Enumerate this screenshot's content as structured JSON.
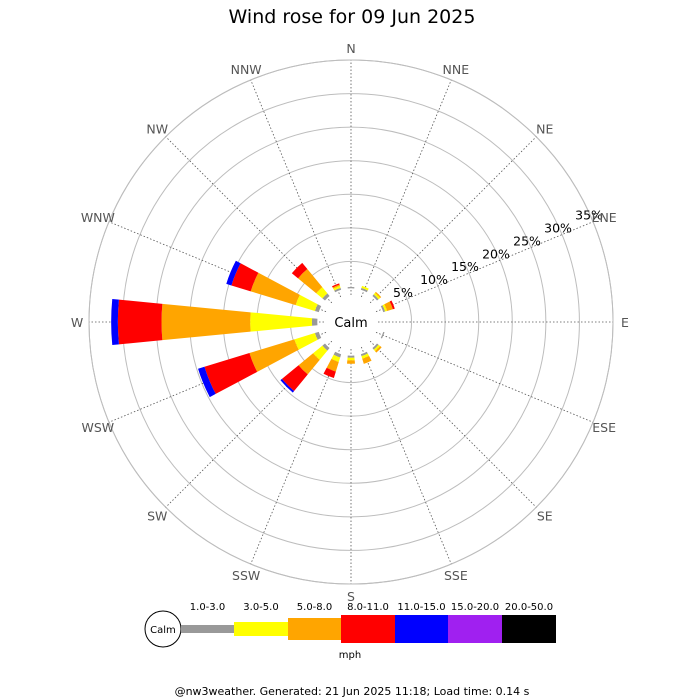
{
  "chart_data": {
    "type": "wind-rose",
    "title": "Wind rose for 09 Jun 2025",
    "calm_label": "Calm",
    "calm_pct": 1.0,
    "directions": [
      "N",
      "NNE",
      "NE",
      "ENE",
      "E",
      "ESE",
      "SE",
      "SSE",
      "S",
      "SSW",
      "SW",
      "WSW",
      "W",
      "WNW",
      "NW",
      "NNW"
    ],
    "ring_labels": [
      "5%",
      "10%",
      "15%",
      "20%",
      "25%",
      "30%",
      "35%"
    ],
    "ring_values": [
      5,
      10,
      15,
      20,
      25,
      30,
      35
    ],
    "unit": "mph",
    "speed_bins": [
      {
        "label": "1.0-3.0",
        "color": "#999999"
      },
      {
        "label": "3.0-5.0",
        "color": "#ffff00"
      },
      {
        "label": "5.0-8.0",
        "color": "#ffa500"
      },
      {
        "label": "8.0-11.0",
        "color": "#ff0000"
      },
      {
        "label": "11.0-15.0",
        "color": "#0000ff"
      },
      {
        "label": "15.0-20.0",
        "color": "#a020f0"
      },
      {
        "label": "20.0-50.0",
        "color": "#000000"
      }
    ],
    "series": [
      {
        "dir": "N",
        "values": [
          0.2,
          0.0,
          0.0,
          0.0,
          0.0,
          0,
          0
        ]
      },
      {
        "dir": "NNE",
        "values": [
          0.3,
          0.3,
          0.0,
          0.0,
          0.0,
          0,
          0
        ]
      },
      {
        "dir": "NE",
        "values": [
          0.3,
          0.3,
          0.2,
          0.0,
          0.0,
          0,
          0
        ]
      },
      {
        "dir": "ENE",
        "values": [
          0.3,
          0.3,
          0.9,
          0.3,
          0.0,
          0,
          0
        ]
      },
      {
        "dir": "E",
        "values": [
          0.0,
          0.0,
          0.0,
          0.0,
          0.0,
          0,
          0
        ]
      },
      {
        "dir": "ESE",
        "values": [
          0.2,
          0.0,
          0.0,
          0.0,
          0.0,
          0,
          0
        ]
      },
      {
        "dir": "SE",
        "values": [
          0.3,
          0.3,
          0.3,
          0.0,
          0.0,
          0,
          0
        ]
      },
      {
        "dir": "SSE",
        "values": [
          0.3,
          0.4,
          0.8,
          0.0,
          0.0,
          0,
          0
        ]
      },
      {
        "dir": "S",
        "values": [
          0.3,
          0.4,
          0.5,
          0.0,
          0.0,
          0,
          0
        ]
      },
      {
        "dir": "SSW",
        "values": [
          0.5,
          0.7,
          1.5,
          1.0,
          0.0,
          0,
          0
        ]
      },
      {
        "dir": "SW",
        "values": [
          0.5,
          1.8,
          2.8,
          3.2,
          0.3,
          0,
          0
        ]
      },
      {
        "dir": "WSW",
        "values": [
          0.6,
          3.2,
          7.0,
          7.0,
          1.0,
          0,
          0
        ]
      },
      {
        "dir": "W",
        "values": [
          0.8,
          9.2,
          13.2,
          6.5,
          1.0,
          0,
          0
        ]
      },
      {
        "dir": "WNW",
        "values": [
          0.6,
          3.0,
          7.0,
          3.0,
          0.8,
          0,
          0
        ]
      },
      {
        "dir": "NW",
        "values": [
          0.5,
          1.2,
          3.5,
          1.2,
          0.0,
          0,
          0
        ]
      },
      {
        "dir": "NNW",
        "values": [
          0.3,
          0.3,
          0.2,
          0.2,
          0.0,
          0,
          0
        ]
      }
    ]
  },
  "footer": "@nw3weather. Generated: 21 Jun 2025 11:18; Load time: 0.14 s"
}
